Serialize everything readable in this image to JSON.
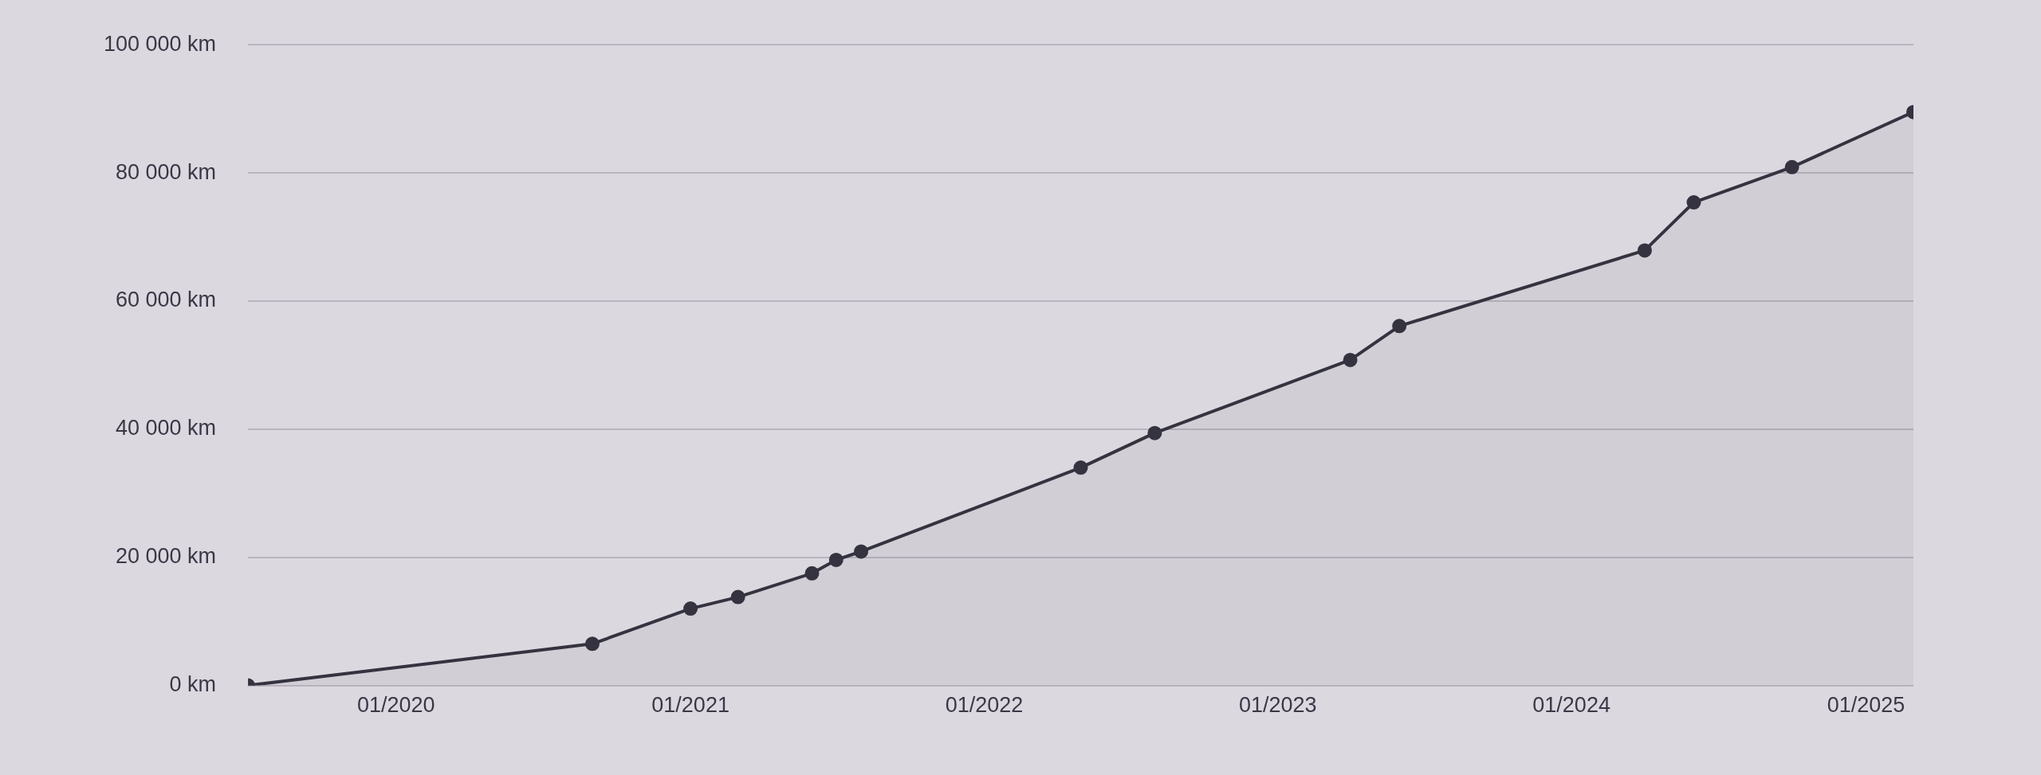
{
  "chart_data": {
    "type": "area",
    "x": [
      "2019-07",
      "2020-09",
      "2021-01",
      "2021-03",
      "2021-06",
      "2021-07",
      "2021-08",
      "2022-05",
      "2022-08",
      "2023-04",
      "2023-06",
      "2024-04",
      "2024-06",
      "2024-10",
      "2025-03"
    ],
    "series": [
      {
        "color": "#34333f",
        "values": [
          0,
          6500,
          12000,
          13800,
          17500,
          19600,
          20900,
          34000,
          39400,
          50800,
          56100,
          67900,
          75400,
          80900,
          89500
        ]
      }
    ],
    "xlim": [
      "2019-07",
      "2025-03"
    ],
    "xticks": [
      {
        "value": "2020-01",
        "label": "01/2020"
      },
      {
        "value": "2021-01",
        "label": "01/2021"
      },
      {
        "value": "2022-01",
        "label": "01/2022"
      },
      {
        "value": "2023-01",
        "label": "01/2023"
      },
      {
        "value": "2024-01",
        "label": "01/2024"
      },
      {
        "value": "2025-01",
        "label": "01/2025"
      }
    ],
    "ylim": [
      0,
      100000
    ],
    "yticks": [
      {
        "value": 0,
        "label": "0 km"
      },
      {
        "value": 20000,
        "label": "20 000 km"
      },
      {
        "value": 40000,
        "label": "40 000 km"
      },
      {
        "value": 60000,
        "label": "60 000 km"
      },
      {
        "value": 80000,
        "label": "80 000 km"
      },
      {
        "value": 100000,
        "label": "100 000 km"
      }
    ],
    "grid": "y",
    "legend": false,
    "marker": "circle",
    "line_style": "solid"
  }
}
